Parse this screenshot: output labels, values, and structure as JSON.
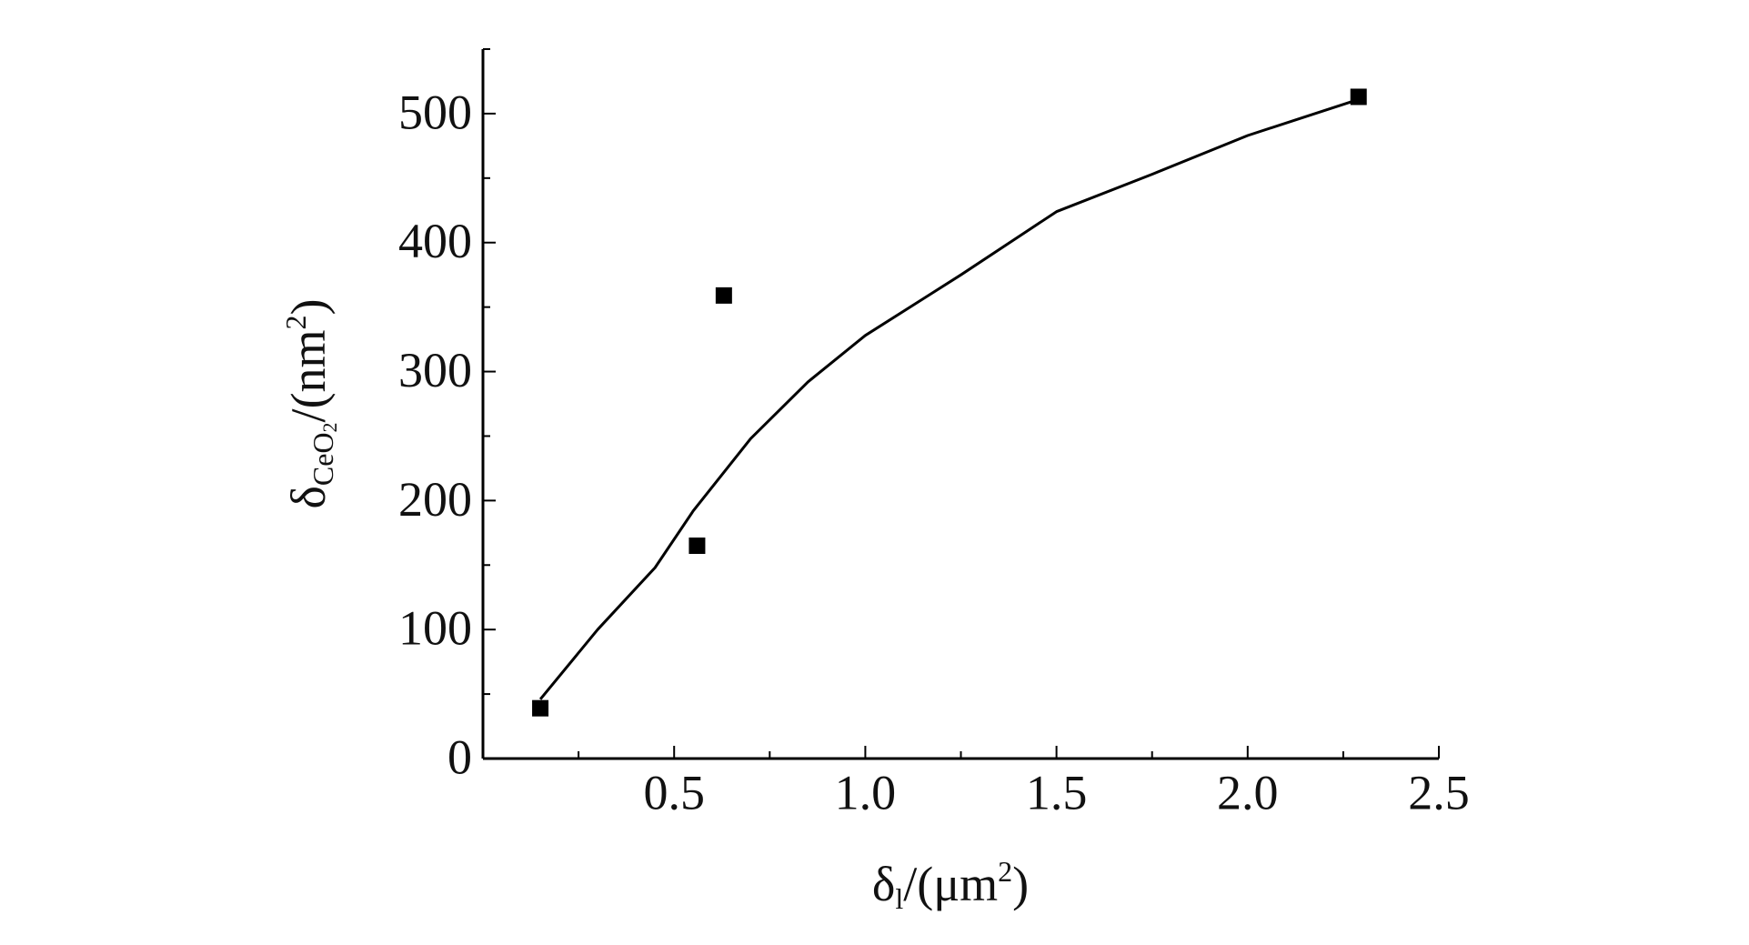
{
  "chart_data": {
    "type": "scatter",
    "x_label": [
      "δ",
      "l",
      "/(μm",
      "2",
      ")"
    ],
    "y_label": [
      "δ",
      "CeO",
      "2",
      "/(nm",
      "2",
      ")"
    ],
    "xlim": [
      0,
      2.5
    ],
    "ylim": [
      0,
      550
    ],
    "xticks": [
      0.5,
      {
        "value": 1,
        "label": "1.0"
      },
      1.5,
      {
        "value": 2,
        "label": "2.0"
      },
      2.5
    ],
    "yticks": [
      0,
      100,
      200,
      300,
      400,
      500
    ],
    "xminorticks": [
      0.25,
      0.75,
      1.25,
      1.75,
      2.25
    ],
    "yminorticks": [
      50,
      150,
      250,
      350,
      450,
      550
    ],
    "color": "#000000",
    "points": {
      "x": [
        0.15,
        0.56,
        0.63,
        2.29
      ],
      "values": [
        39,
        165,
        359,
        513
      ]
    },
    "fit": {
      "x": [
        0.15,
        0.3,
        0.45,
        0.55,
        0.7,
        0.85,
        1.0,
        1.25,
        1.5,
        1.75,
        2.0,
        2.29
      ],
      "values": [
        46,
        100,
        148,
        192,
        248,
        292,
        328,
        375,
        424,
        453,
        483,
        511
      ]
    }
  }
}
